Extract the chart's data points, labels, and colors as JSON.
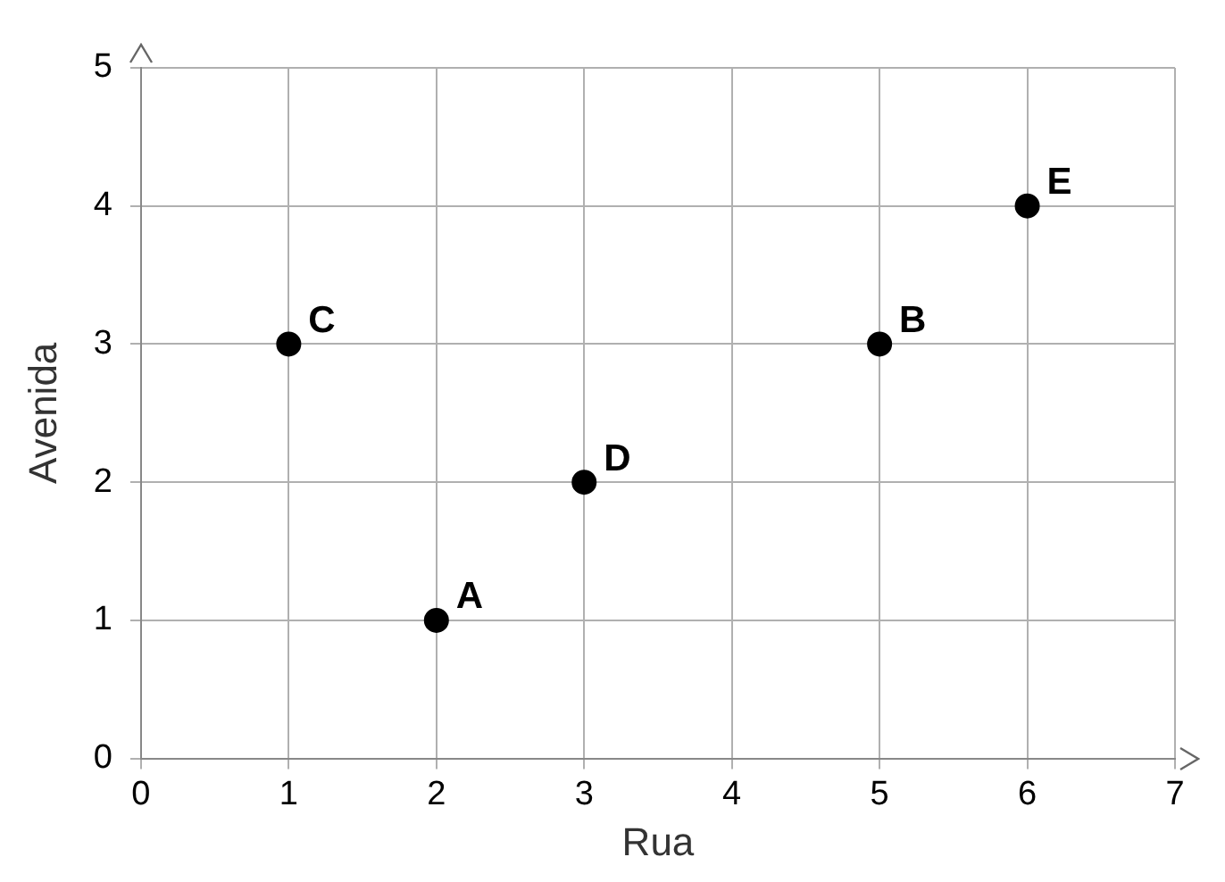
{
  "chart_data": {
    "type": "scatter",
    "xlabel": "Rua",
    "ylabel": "Avenida",
    "x": [
      1,
      2,
      3,
      5,
      6
    ],
    "values": [
      3,
      1,
      2,
      3,
      4
    ],
    "color": "#000000",
    "marker": "circle",
    "xlim": [
      0,
      7
    ],
    "ylim": [
      0,
      5
    ],
    "xticks": [
      0,
      1,
      2,
      3,
      4,
      5,
      6,
      7
    ],
    "yticks": [
      0,
      1,
      2,
      3,
      4,
      5
    ],
    "grid": true,
    "annotations": [
      {
        "text": "C",
        "x": 1,
        "y": 3
      },
      {
        "text": "A",
        "x": 2,
        "y": 1
      },
      {
        "text": "D",
        "x": 3,
        "y": 2
      },
      {
        "text": "B",
        "x": 5,
        "y": 3
      },
      {
        "text": "E",
        "x": 6,
        "y": 4
      }
    ]
  }
}
